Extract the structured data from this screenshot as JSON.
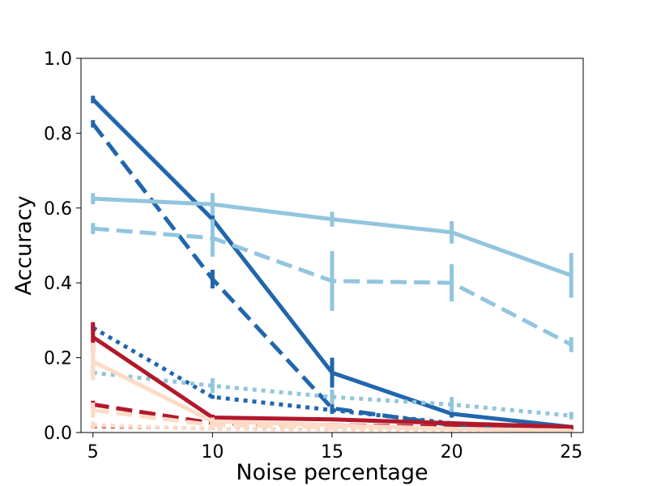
{
  "chart_data": {
    "type": "line",
    "title": "",
    "xlabel": "Noise percentage",
    "ylabel": "Accuracy",
    "x": [
      5,
      10,
      15,
      20,
      25
    ],
    "xticks": [
      "5",
      "10",
      "15",
      "20",
      "25"
    ],
    "yticks": [
      "0.0",
      "0.2",
      "0.4",
      "0.6",
      "0.8",
      "1.0"
    ],
    "xlim": [
      4.5,
      25.5
    ],
    "ylim": [
      0,
      1
    ],
    "grid": false,
    "legend": "none",
    "series": [
      {
        "color": "#2166ac",
        "dash": "solid",
        "width": 5,
        "values": [
          0.89,
          0.57,
          0.16,
          0.05,
          0.015
        ],
        "errors": [
          0.01,
          0.01,
          0.04,
          0.01,
          0.005
        ]
      },
      {
        "color": "#2166ac",
        "dash": "dashed",
        "width": 5,
        "values": [
          0.825,
          0.41,
          0.065,
          0.02,
          0.005
        ],
        "errors": [
          0.01,
          0.025,
          0.015,
          0.005,
          0.003
        ]
      },
      {
        "color": "#2166ac",
        "dash": "dotted",
        "width": 5,
        "values": [
          0.28,
          0.095,
          0.06,
          0.025,
          0.008
        ],
        "errors": [
          0.01,
          0.005,
          0.005,
          0.005,
          0.003
        ]
      },
      {
        "color": "#92c5de",
        "dash": "solid",
        "width": 5,
        "values": [
          0.625,
          0.61,
          0.57,
          0.535,
          0.42
        ],
        "errors": [
          0.015,
          0.03,
          0.02,
          0.03,
          0.06
        ]
      },
      {
        "color": "#92c5de",
        "dash": "dashed",
        "width": 5,
        "values": [
          0.545,
          0.52,
          0.405,
          0.4,
          0.235
        ],
        "errors": [
          0.015,
          0.05,
          0.08,
          0.05,
          0.02
        ]
      },
      {
        "color": "#92c5de",
        "dash": "dotted",
        "width": 5,
        "values": [
          0.16,
          0.125,
          0.095,
          0.075,
          0.045
        ],
        "errors": [
          0.02,
          0.02,
          0.02,
          0.02,
          0.01
        ]
      },
      {
        "color": "#b2182b",
        "dash": "solid",
        "width": 5,
        "values": [
          0.255,
          0.04,
          0.035,
          0.025,
          0.015
        ],
        "errors": [
          0.04,
          0.008,
          0.005,
          0.005,
          0.005
        ]
      },
      {
        "color": "#b2182b",
        "dash": "dashed",
        "width": 5,
        "values": [
          0.075,
          0.025,
          0.02,
          0.015,
          0.01
        ],
        "errors": [
          0.01,
          0.005,
          0.005,
          0.005,
          0.003
        ]
      },
      {
        "color": "#b2182b",
        "dash": "dotted",
        "width": 3,
        "values": [
          0.015,
          0.01,
          0.01,
          0.008,
          0.005
        ],
        "errors": [
          0.005,
          0.003,
          0.003,
          0.003,
          0.003
        ]
      },
      {
        "color": "#fddbc7",
        "dash": "solid",
        "width": 5,
        "values": [
          0.19,
          0.03,
          0.02,
          0.01,
          0.005
        ],
        "errors": [
          0.05,
          0.01,
          0.005,
          0.005,
          0.003
        ]
      },
      {
        "color": "#fddbc7",
        "dash": "dashed",
        "width": 5,
        "values": [
          0.06,
          0.02,
          0.015,
          0.01,
          0.005
        ],
        "errors": [
          0.02,
          0.005,
          0.005,
          0.005,
          0.003
        ]
      },
      {
        "color": "#fddbc7",
        "dash": "dotted",
        "width": 5,
        "values": [
          0.02,
          0.01,
          0.008,
          0.005,
          0.003
        ],
        "errors": [
          0.01,
          0.003,
          0.003,
          0.003,
          0.002
        ]
      }
    ]
  }
}
